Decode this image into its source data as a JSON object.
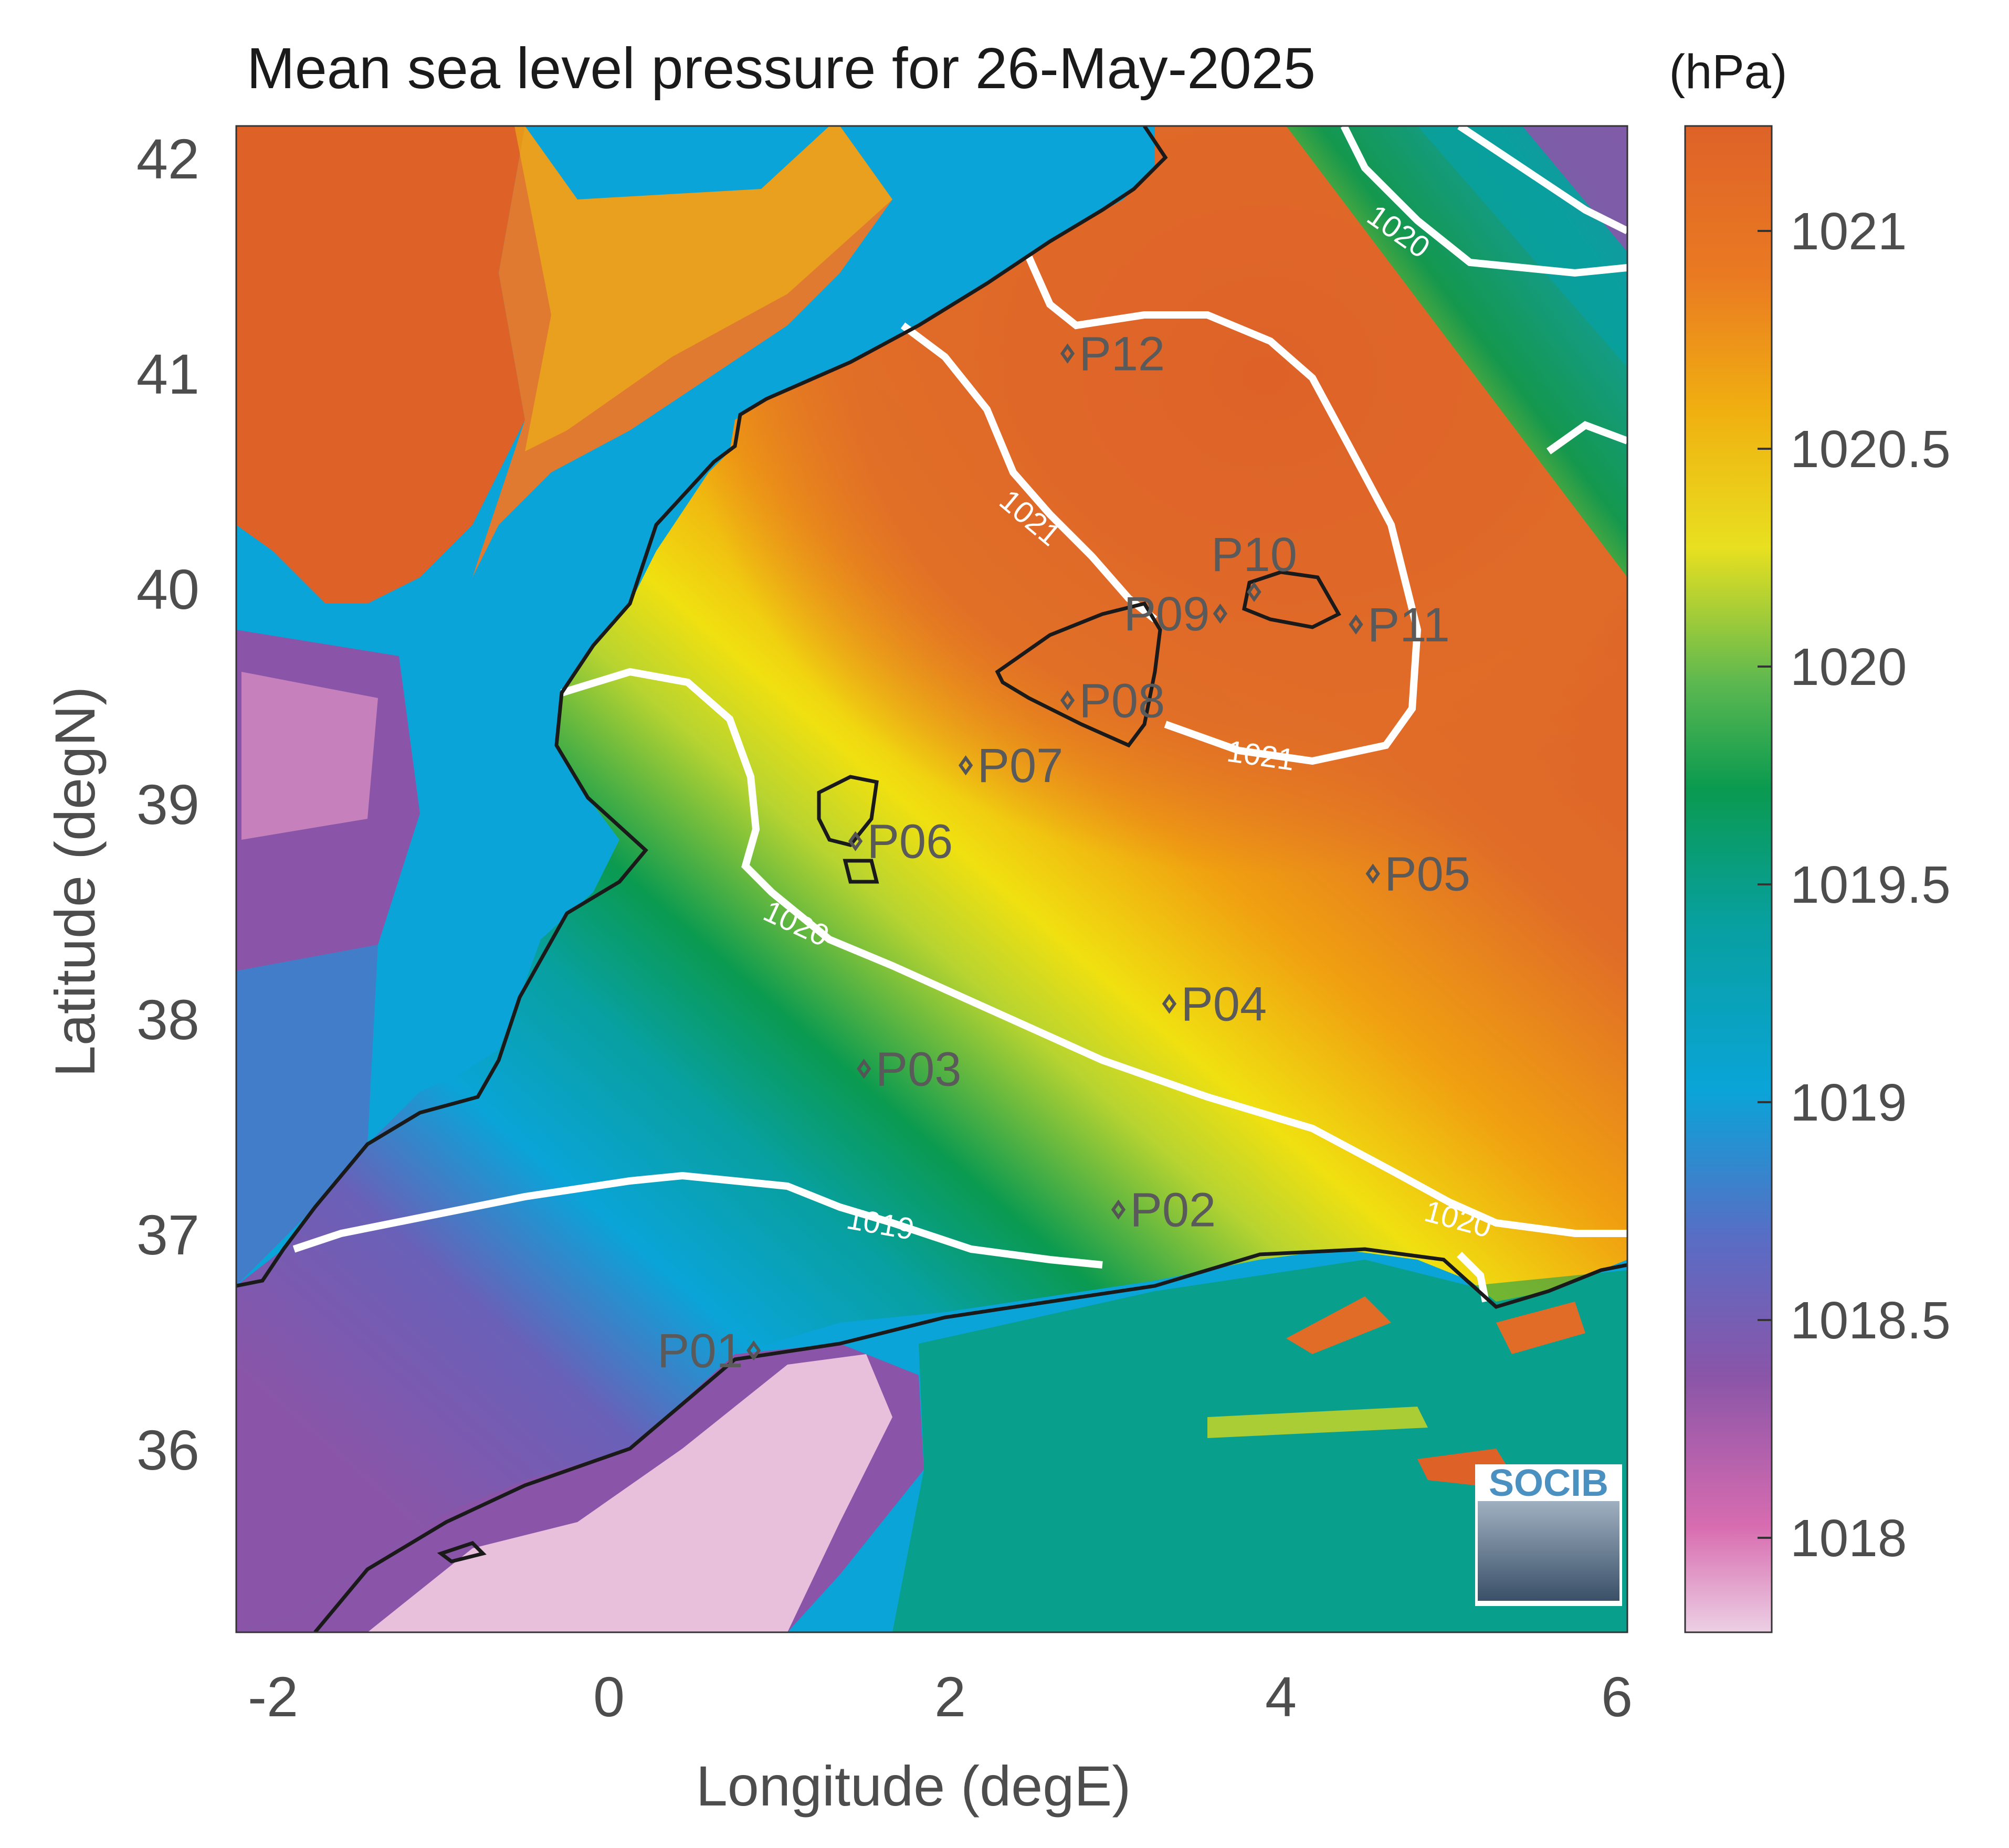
{
  "figure": {
    "title": "Mean sea level pressure for 26-May-2025",
    "xlabel": "Longitude (degE)",
    "ylabel": "Latitude (degN)",
    "x_ticks": [
      "-2",
      "0",
      "2",
      "4",
      "6"
    ],
    "y_ticks": [
      "42",
      "41",
      "40",
      "39",
      "38",
      "37",
      "36"
    ],
    "colorbar": {
      "unit": "(hPa)",
      "ticks": [
        "1021",
        "1020.5",
        "1020",
        "1019.5",
        "1019",
        "1018.5",
        "1018"
      ]
    },
    "contour_labels": [
      "1021",
      "1021",
      "1020",
      "1020",
      "1020",
      "1019"
    ],
    "logo_text": "SOCIB",
    "colors": {
      "orange": "#e06c28",
      "yellow": "#f0e010",
      "green": "#0a9a50",
      "cyan": "#0aa4d8",
      "purple": "#8a55a8",
      "pink": "#e6b8d6",
      "axis_text": "#4d4d4d",
      "contour": "#ffffff",
      "coastline": "#1a1a1a"
    }
  },
  "chart_data": {
    "type": "heatmap",
    "title": "Mean sea level pressure for 26-May-2025",
    "xlabel": "Longitude (degE)",
    "ylabel": "Latitude (degN)",
    "xlim": [
      -2.2,
      6.0
    ],
    "ylim": [
      35.2,
      42.15
    ],
    "colorbar_range": [
      1017.75,
      1021.25
    ],
    "unit": "hPa",
    "contour_levels": [
      1019,
      1020,
      1021
    ],
    "stations": [
      {
        "name": "P01",
        "lon": 0.85,
        "lat": 36.5
      },
      {
        "name": "P02",
        "lon": 3.0,
        "lat": 37.15
      },
      {
        "name": "P03",
        "lon": 1.5,
        "lat": 37.8
      },
      {
        "name": "P04",
        "lon": 3.3,
        "lat": 38.1
      },
      {
        "name": "P05",
        "lon": 4.5,
        "lat": 38.7
      },
      {
        "name": "P06",
        "lon": 1.45,
        "lat": 38.85
      },
      {
        "name": "P07",
        "lon": 2.1,
        "lat": 39.2
      },
      {
        "name": "P08",
        "lon": 2.7,
        "lat": 39.5
      },
      {
        "name": "P09",
        "lon": 3.6,
        "lat": 39.9
      },
      {
        "name": "P10",
        "lon": 3.8,
        "lat": 40.0
      },
      {
        "name": "P11",
        "lon": 4.4,
        "lat": 39.85
      },
      {
        "name": "P12",
        "lon": 2.7,
        "lat": 41.1
      }
    ]
  }
}
